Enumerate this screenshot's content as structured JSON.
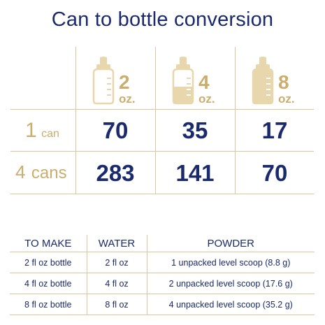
{
  "title": "Can to bottle conversion",
  "colors": {
    "navy": "#1a2a6c",
    "gold": "#cbae6d",
    "rule": "#d8c79f"
  },
  "bottles": [
    {
      "num": "2",
      "unit": "oz.",
      "icon": "baby-bottle-icon",
      "fill_fraction": 0.0
    },
    {
      "num": "4",
      "unit": "oz.",
      "icon": "baby-bottle-icon",
      "fill_fraction": 0.5
    },
    {
      "num": "8",
      "unit": "oz.",
      "icon": "baby-bottle-icon",
      "fill_fraction": 1.0
    }
  ],
  "rows": [
    {
      "count": "1",
      "unit": "can",
      "values": [
        "70",
        "35",
        "17"
      ]
    },
    {
      "count": "4",
      "unit": "cans",
      "values": [
        "283",
        "141",
        "70"
      ]
    }
  ],
  "reference": {
    "headers": [
      "TO MAKE",
      "WATER",
      "POWDER"
    ],
    "rows": [
      [
        "2 fl oz bottle",
        "2 fl oz",
        "1 unpacked level scoop (8.8 g)"
      ],
      [
        "4 fl oz bottle",
        "4 fl oz",
        "2 unpacked level scoop (17.6 g)"
      ],
      [
        "8 fl oz bottle",
        "8 fl oz",
        "4 unpacked level scoop (35.2 g)"
      ]
    ]
  }
}
